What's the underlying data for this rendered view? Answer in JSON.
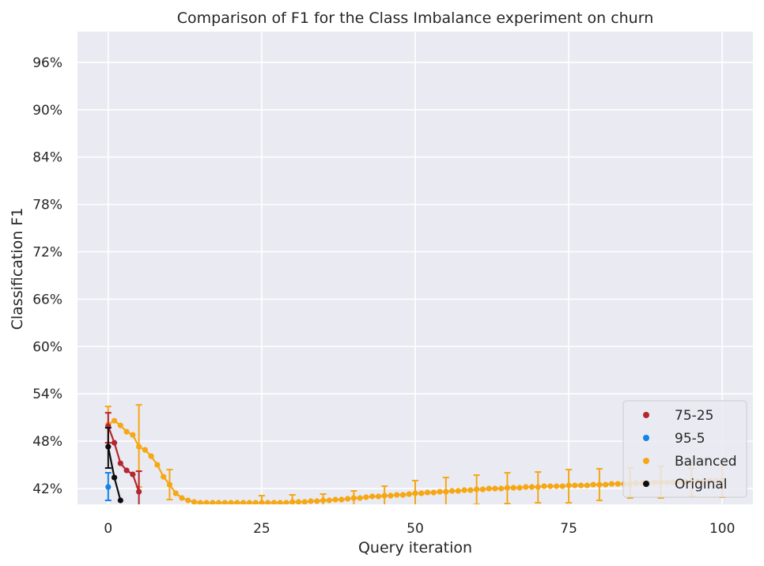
{
  "chart_data": {
    "type": "line",
    "title": "Comparison of F1 for the Class Imbalance experiment on churn",
    "xlabel": "Query iteration",
    "ylabel": "Classification F1",
    "xlim": [
      -5,
      105
    ],
    "ylim": [
      0.4,
      0.999
    ],
    "x_ticks": [
      0,
      25,
      50,
      75,
      100
    ],
    "x_tick_labels": [
      "0",
      "25",
      "50",
      "75",
      "100"
    ],
    "y_ticks": [
      0.42,
      0.48,
      0.54,
      0.6,
      0.66,
      0.72,
      0.78,
      0.84,
      0.9,
      0.96
    ],
    "y_tick_labels": [
      "42%",
      "48%",
      "54%",
      "60%",
      "66%",
      "72%",
      "78%",
      "84%",
      "90%",
      "96%"
    ],
    "grid": true,
    "legend_position": "bottom-right",
    "series": [
      {
        "name": "75-25",
        "color": "#b5262f",
        "x": [
          0,
          1,
          2,
          3,
          4,
          5
        ],
        "y": [
          0.499,
          0.478,
          0.452,
          0.443,
          0.438,
          0.416
        ],
        "errors": [
          {
            "x": 0,
            "lo": 0.478,
            "hi": 0.516
          },
          {
            "x": 5,
            "lo": 0.39,
            "hi": 0.442
          }
        ]
      },
      {
        "name": "95-5",
        "color": "#1482e6",
        "x": [
          0
        ],
        "y": [
          0.422
        ],
        "errors": [
          {
            "x": 0,
            "lo": 0.405,
            "hi": 0.44
          }
        ]
      },
      {
        "name": "Balanced",
        "color": "#f5a714",
        "x": [
          0,
          1,
          2,
          3,
          4,
          5,
          6,
          7,
          8,
          9,
          10,
          11,
          12,
          13,
          14,
          15,
          16,
          17,
          18,
          19,
          20,
          21,
          22,
          23,
          24,
          25,
          26,
          27,
          28,
          29,
          30,
          31,
          32,
          33,
          34,
          35,
          36,
          37,
          38,
          39,
          40,
          41,
          42,
          43,
          44,
          45,
          46,
          47,
          48,
          49,
          50,
          51,
          52,
          53,
          54,
          55,
          56,
          57,
          58,
          59,
          60,
          61,
          62,
          63,
          64,
          65,
          66,
          67,
          68,
          69,
          70,
          71,
          72,
          73,
          74,
          75,
          76,
          77,
          78,
          79,
          80,
          81,
          82,
          83,
          84,
          85,
          86,
          87,
          88,
          89,
          90,
          91,
          92,
          93,
          94,
          95,
          96,
          97,
          98,
          99,
          100
        ],
        "y": [
          0.501,
          0.506,
          0.5,
          0.492,
          0.488,
          0.473,
          0.469,
          0.461,
          0.45,
          0.435,
          0.425,
          0.414,
          0.408,
          0.405,
          0.403,
          0.402,
          0.402,
          0.402,
          0.402,
          0.402,
          0.402,
          0.402,
          0.402,
          0.402,
          0.402,
          0.402,
          0.402,
          0.402,
          0.402,
          0.402,
          0.403,
          0.403,
          0.403,
          0.404,
          0.404,
          0.405,
          0.405,
          0.406,
          0.406,
          0.407,
          0.408,
          0.408,
          0.409,
          0.41,
          0.41,
          0.411,
          0.411,
          0.412,
          0.412,
          0.413,
          0.414,
          0.414,
          0.415,
          0.415,
          0.416,
          0.416,
          0.417,
          0.417,
          0.418,
          0.418,
          0.419,
          0.419,
          0.42,
          0.42,
          0.42,
          0.421,
          0.421,
          0.421,
          0.422,
          0.422,
          0.422,
          0.423,
          0.423,
          0.423,
          0.423,
          0.424,
          0.424,
          0.424,
          0.424,
          0.425,
          0.425,
          0.425,
          0.426,
          0.426,
          0.426,
          0.426,
          0.427,
          0.427,
          0.427,
          0.428,
          0.428,
          0.428,
          0.428,
          0.429,
          0.429,
          0.429,
          0.429,
          0.429,
          0.43,
          0.43,
          0.43
        ],
        "errors": [
          {
            "x": 0,
            "lo": 0.478,
            "hi": 0.524
          },
          {
            "x": 5,
            "lo": 0.422,
            "hi": 0.526
          },
          {
            "x": 10,
            "lo": 0.406,
            "hi": 0.444
          },
          {
            "x": 25,
            "lo": 0.397,
            "hi": 0.411
          },
          {
            "x": 30,
            "lo": 0.396,
            "hi": 0.412
          },
          {
            "x": 35,
            "lo": 0.397,
            "hi": 0.413
          },
          {
            "x": 40,
            "lo": 0.398,
            "hi": 0.417
          },
          {
            "x": 45,
            "lo": 0.398,
            "hi": 0.423
          },
          {
            "x": 50,
            "lo": 0.397,
            "hi": 0.43
          },
          {
            "x": 55,
            "lo": 0.398,
            "hi": 0.434
          },
          {
            "x": 60,
            "lo": 0.4,
            "hi": 0.437
          },
          {
            "x": 65,
            "lo": 0.401,
            "hi": 0.44
          },
          {
            "x": 70,
            "lo": 0.402,
            "hi": 0.441
          },
          {
            "x": 75,
            "lo": 0.402,
            "hi": 0.444
          },
          {
            "x": 80,
            "lo": 0.405,
            "hi": 0.445
          },
          {
            "x": 85,
            "lo": 0.408,
            "hi": 0.446
          },
          {
            "x": 90,
            "lo": 0.408,
            "hi": 0.448
          },
          {
            "x": 95,
            "lo": 0.41,
            "hi": 0.446
          },
          {
            "x": 100,
            "lo": 0.409,
            "hi": 0.451
          }
        ]
      },
      {
        "name": "Original",
        "color": "#0d0d0d",
        "x": [
          0,
          1,
          2
        ],
        "y": [
          0.473,
          0.434,
          0.405
        ],
        "errors": [
          {
            "x": 0,
            "lo": 0.446,
            "hi": 0.497
          }
        ]
      }
    ]
  }
}
